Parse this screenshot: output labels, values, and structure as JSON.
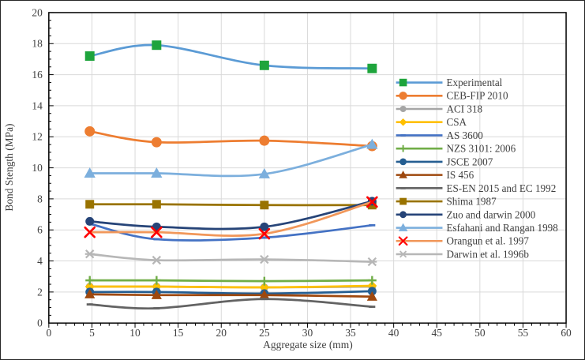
{
  "chart_data": {
    "type": "line",
    "title": "",
    "xlabel": "Aggregate size (mm)",
    "ylabel": "Bond Stength (MPa)",
    "xlim": [
      0,
      60
    ],
    "ylim": [
      0,
      20
    ],
    "x_ticks": [
      0,
      5,
      10,
      15,
      20,
      25,
      30,
      35,
      40,
      45,
      50,
      55,
      60
    ],
    "y_ticks": [
      0,
      2,
      4,
      6,
      8,
      10,
      12,
      14,
      16,
      18,
      20
    ],
    "x_minor_step": 1,
    "y_minor_step": 0.5,
    "grid": true,
    "smooth_lines": true,
    "legend_position": "right-inside",
    "grid_color": "#D9D9D9",
    "axis_color": "#000000",
    "text_color": "#3F3F3F",
    "x": [
      4.75,
      12.5,
      25,
      37.5
    ],
    "series": [
      {
        "name": "Experimental",
        "values": [
          17.2,
          17.9,
          16.6,
          16.4
        ],
        "line_color": "#5B9BD5",
        "marker": "square",
        "marker_color": "#1EA43C",
        "marker_size": 12
      },
      {
        "name": "CEB-FIP 2010",
        "values": [
          12.35,
          11.65,
          11.75,
          11.4
        ],
        "line_color": "#ED7D31",
        "marker": "circle",
        "marker_color": "#ED7D31",
        "marker_size": 13
      },
      {
        "name": "ACI 318",
        "values": [
          2.35,
          2.35,
          2.3,
          2.35
        ],
        "line_color": "#A5A5A5",
        "marker": "circle",
        "marker_color": "#A5A5A5",
        "marker_size": 10
      },
      {
        "name": "CSA",
        "values": [
          2.35,
          2.35,
          2.3,
          2.4
        ],
        "line_color": "#FFC000",
        "marker": "diamond",
        "marker_color": "#FFC000",
        "marker_size": 12
      },
      {
        "name": "AS 3600",
        "values": [
          6.4,
          5.4,
          5.5,
          6.3
        ],
        "line_color": "#4472C4",
        "marker": "dash",
        "marker_color": "#4472C4",
        "marker_size": 8
      },
      {
        "name": "NZS 3101: 2006",
        "values": [
          2.75,
          2.75,
          2.7,
          2.75
        ],
        "line_color": "#70AD47",
        "marker": "plus",
        "marker_color": "#70AD47",
        "marker_size": 11
      },
      {
        "name": "JSCE 2007",
        "values": [
          2.0,
          2.0,
          1.9,
          2.05
        ],
        "line_color": "#255E91",
        "marker": "circle",
        "marker_color": "#255E91",
        "marker_size": 11
      },
      {
        "name": "IS 456",
        "values": [
          1.85,
          1.8,
          1.8,
          1.7
        ],
        "line_color": "#9E480E",
        "marker": "triangle",
        "marker_color": "#9E480E",
        "marker_size": 12
      },
      {
        "name": "ES-EN 2015 and EC 1992",
        "values": [
          1.2,
          0.95,
          1.55,
          1.05
        ],
        "line_color": "#636363",
        "marker": "dash",
        "marker_color": "#636363",
        "marker_size": 8
      },
      {
        "name": "Shima 1987",
        "values": [
          7.65,
          7.65,
          7.6,
          7.6
        ],
        "line_color": "#997300",
        "marker": "square",
        "marker_color": "#997300",
        "marker_size": 11
      },
      {
        "name": "Zuo and darwin 2000",
        "values": [
          6.55,
          6.2,
          6.2,
          7.85
        ],
        "line_color": "#264478",
        "marker": "circle",
        "marker_color": "#264478",
        "marker_size": 11
      },
      {
        "name": "Esfahani and Rangan 1998",
        "values": [
          9.65,
          9.65,
          9.6,
          11.5
        ],
        "line_color": "#7CAFDD",
        "marker": "triangle",
        "marker_color": "#7CAFDD",
        "marker_size": 13
      },
      {
        "name": "Orangun et al. 1997",
        "values": [
          5.85,
          5.85,
          5.75,
          7.8
        ],
        "line_color": "#F1975A",
        "marker": "x",
        "marker_color": "#FF0000",
        "marker_size": 12
      },
      {
        "name": "Darwin et al. 1996b",
        "values": [
          4.45,
          4.05,
          4.1,
          3.95
        ],
        "line_color": "#B7B7B7",
        "marker": "asterisk",
        "marker_color": "#B7B7B7",
        "marker_size": 12
      }
    ]
  }
}
